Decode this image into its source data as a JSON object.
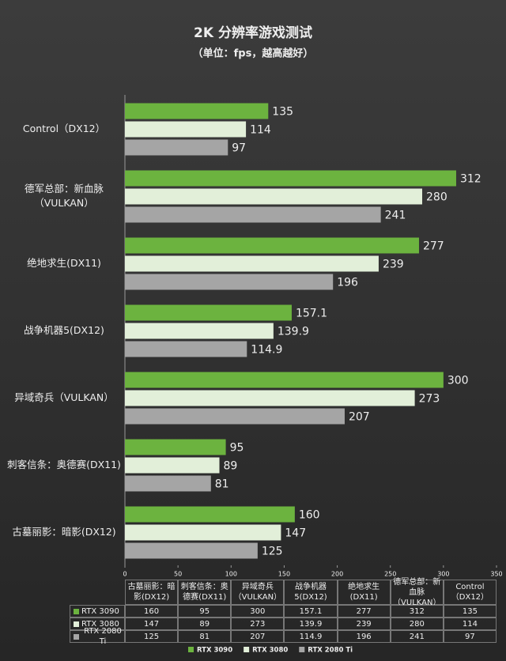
{
  "chart_data": {
    "type": "bar",
    "orientation": "horizontal",
    "title": "2K 分辨率游戏测试",
    "subtitle": "（单位：fps，越高越好）",
    "categories": [
      "古墓丽影：暗影(DX12)",
      "刺客信条：奥德赛(DX11)",
      "异域奇兵（VULKAN）",
      "战争机器5(DX12)",
      "绝地求生(DX11)",
      "德军总部：新血脉（VULKAN）",
      "Control（DX12）"
    ],
    "series": [
      {
        "name": "RTX 3090",
        "color": "#6cb33f",
        "values": [
          160,
          95,
          300,
          157.1,
          277,
          312,
          135
        ]
      },
      {
        "name": "RTX 3080",
        "color": "#e2efd9",
        "values": [
          147,
          89,
          273,
          139.9,
          239,
          280,
          114
        ]
      },
      {
        "name": "RTX 2080 Ti",
        "color": "#a5a5a5",
        "values": [
          125,
          81,
          207,
          114.9,
          196,
          241,
          97
        ]
      }
    ],
    "xlim": [
      0,
      350
    ],
    "xticks": [
      0,
      50,
      100,
      150,
      200,
      250,
      300,
      350
    ],
    "grid": false,
    "data_table": true,
    "legend": "bottom"
  }
}
